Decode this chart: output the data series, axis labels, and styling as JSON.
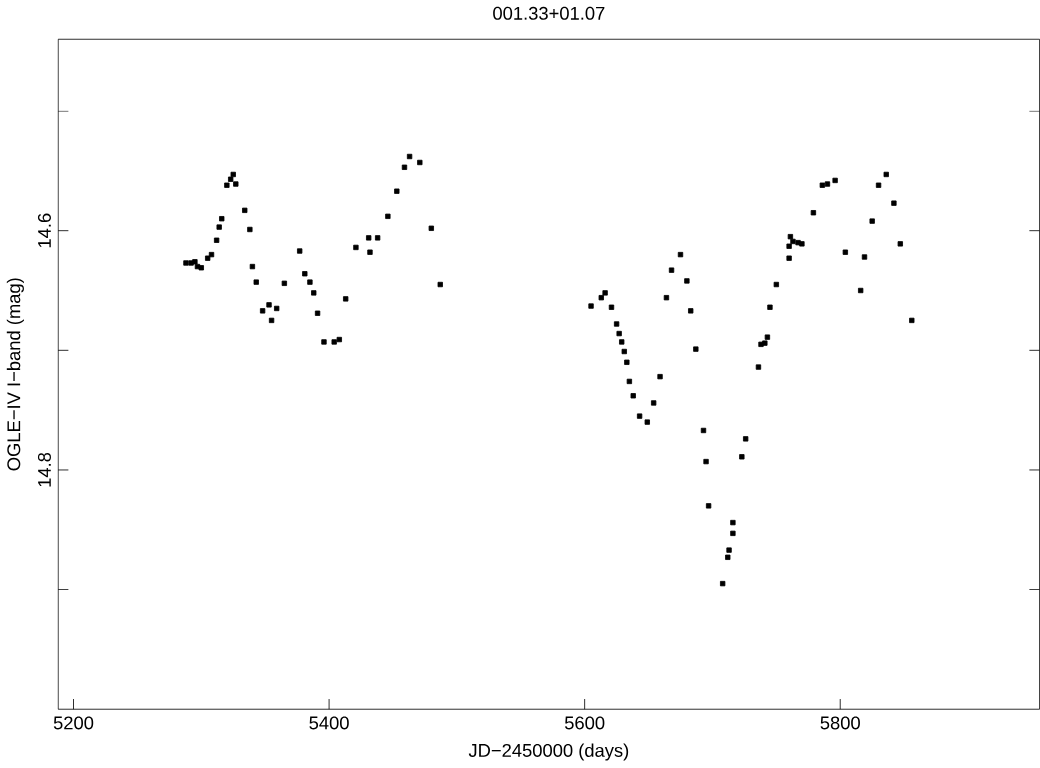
{
  "chart_data": {
    "type": "scatter",
    "title": "001.33+01.07",
    "xlabel": "JD−2450000 (days)",
    "ylabel": "OGLE−IV I−band (mag)",
    "xlim": [
      5188,
      5956
    ],
    "ylim": [
      15.0,
      14.44
    ],
    "xticks": [
      5200,
      5400,
      5600,
      5800
    ],
    "yticks": [
      {
        "value": 14.5,
        "label": null
      },
      14.6,
      {
        "value": 14.7,
        "label": null
      },
      14.8,
      {
        "value": 14.9,
        "label": null
      }
    ],
    "marker": "square",
    "series": [
      {
        "color": "#000000",
        "x": [
          5288,
          5292,
          5295,
          5297,
          5300,
          5305,
          5308,
          5312,
          5314,
          5316,
          5320,
          5323,
          5325,
          5327,
          5334,
          5338,
          5340,
          5343,
          5348,
          5353,
          5355,
          5359,
          5365,
          5377,
          5381,
          5385,
          5388,
          5391,
          5396,
          5404,
          5408,
          5413,
          5421,
          5431,
          5432,
          5438,
          5446,
          5453,
          5459,
          5463,
          5471,
          5480,
          5487,
          5605,
          5613,
          5616,
          5621,
          5625,
          5627,
          5629,
          5631,
          5633,
          5635,
          5638,
          5643,
          5649,
          5654,
          5659,
          5664,
          5668,
          5675,
          5680,
          5683,
          5687,
          5693,
          5695,
          5697,
          5708,
          5712,
          5713,
          5716,
          5716,
          5723,
          5726,
          5736,
          5738,
          5741,
          5743,
          5745,
          5750,
          5760,
          5760,
          5761,
          5763,
          5767,
          5770,
          5779,
          5786,
          5790,
          5796,
          5804,
          5816,
          5819,
          5825,
          5830,
          5836,
          5842,
          5847,
          5856
        ],
        "values": [
          14.627,
          14.627,
          14.626,
          14.63,
          14.631,
          14.623,
          14.62,
          14.608,
          14.597,
          14.59,
          14.562,
          14.557,
          14.553,
          14.561,
          14.583,
          14.599,
          14.63,
          14.643,
          14.667,
          14.662,
          14.675,
          14.665,
          14.644,
          14.617,
          14.636,
          14.643,
          14.652,
          14.669,
          14.693,
          14.693,
          14.691,
          14.657,
          14.614,
          14.606,
          14.618,
          14.606,
          14.588,
          14.567,
          14.547,
          14.538,
          14.543,
          14.598,
          14.645,
          14.663,
          14.656,
          14.652,
          14.664,
          14.678,
          14.686,
          14.693,
          14.701,
          14.71,
          14.726,
          14.738,
          14.755,
          14.76,
          14.744,
          14.722,
          14.656,
          14.633,
          14.62,
          14.642,
          14.667,
          14.699,
          14.767,
          14.793,
          14.83,
          14.895,
          14.873,
          14.867,
          14.853,
          14.844,
          14.789,
          14.774,
          14.714,
          14.695,
          14.694,
          14.689,
          14.664,
          14.645,
          14.623,
          14.613,
          14.605,
          14.609,
          14.61,
          14.611,
          14.585,
          14.562,
          14.561,
          14.558,
          14.618,
          14.65,
          14.622,
          14.592,
          14.562,
          14.553,
          14.577,
          14.611,
          14.675
        ]
      }
    ]
  }
}
